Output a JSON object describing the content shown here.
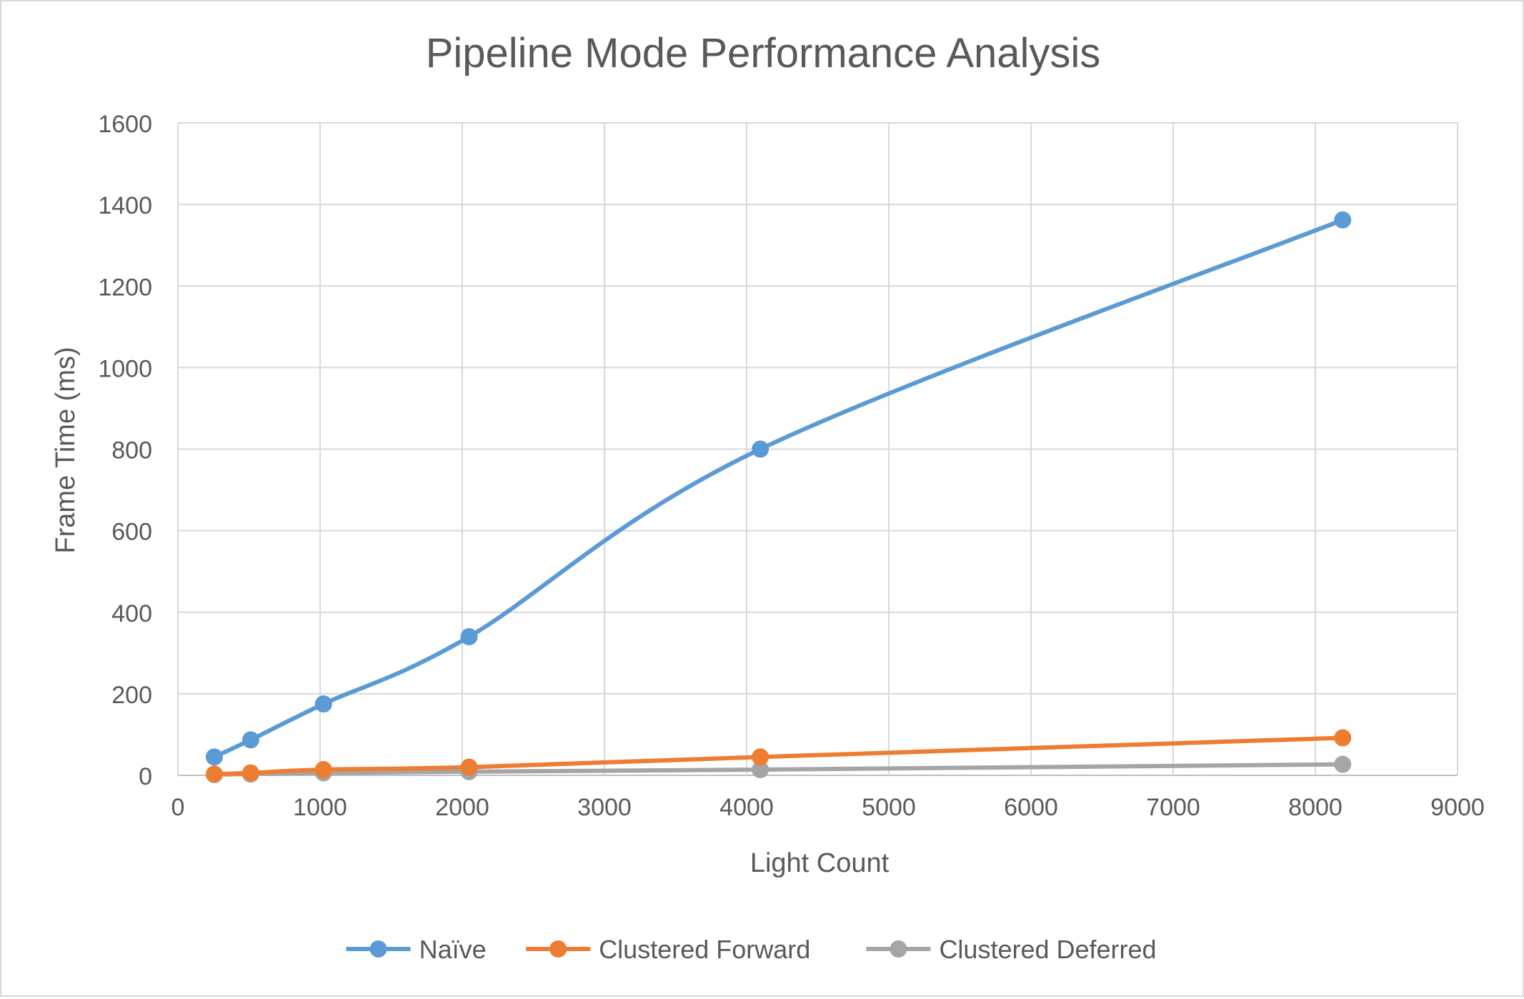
{
  "chart_data": {
    "type": "scatter",
    "title": "Pipeline Mode Performance Analysis",
    "xlabel": "Light Count",
    "ylabel": "Frame Time (ms)",
    "xlim": [
      0,
      9000
    ],
    "ylim": [
      0,
      1600
    ],
    "x_ticks": [
      0,
      1000,
      2000,
      3000,
      4000,
      5000,
      6000,
      7000,
      8000,
      9000
    ],
    "y_ticks": [
      0,
      200,
      400,
      600,
      800,
      1000,
      1200,
      1400,
      1600
    ],
    "grid": true,
    "smoothed_lines": true,
    "markers": true,
    "legend_position": "bottom",
    "x": [
      256,
      512,
      1024,
      2048,
      4096,
      8192
    ],
    "series": [
      {
        "name": "Naïve",
        "color": "#5B9BD5",
        "values": [
          45,
          87,
          175,
          340,
          800,
          1362
        ]
      },
      {
        "name": "Clustered Forward",
        "color": "#ED7D31",
        "values": [
          3,
          6,
          14,
          20,
          45,
          92
        ]
      },
      {
        "name": "Clustered Deferred",
        "color": "#A5A5A5",
        "values": [
          2,
          3,
          6,
          9,
          14,
          27
        ]
      }
    ]
  },
  "colors": {
    "text": "#595959",
    "grid": "#d9d9d9",
    "axis": "#bfbfbf"
  }
}
